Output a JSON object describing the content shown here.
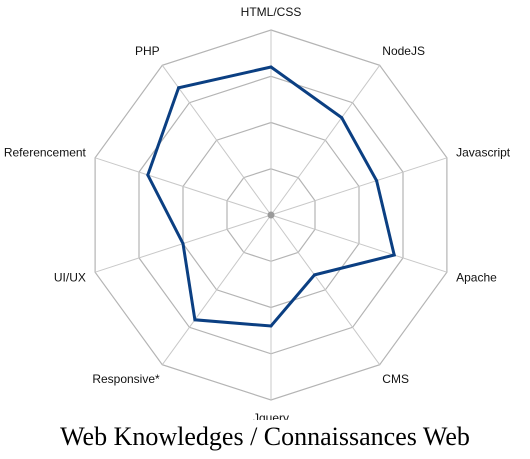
{
  "chart_data": {
    "type": "radar",
    "title": "Web Knowledges / Connaissances Web",
    "categories": [
      "HTML/CSS",
      "NodeJS",
      "Javascript",
      "Apache",
      "CMS",
      "Jquery",
      "Responsive*",
      "UI/UX",
      "Referencement",
      "PHP"
    ],
    "series": [
      {
        "values": [
          80,
          65,
          60,
          70,
          40,
          60,
          70,
          50,
          70,
          85
        ]
      }
    ],
    "range": [
      0,
      100
    ],
    "rings": 4,
    "grid": true,
    "colors": {
      "series": "#0b3f82",
      "grid": "#b4b4b4",
      "spoke": "#c8c8c8",
      "center": "#9a9a9a"
    }
  }
}
